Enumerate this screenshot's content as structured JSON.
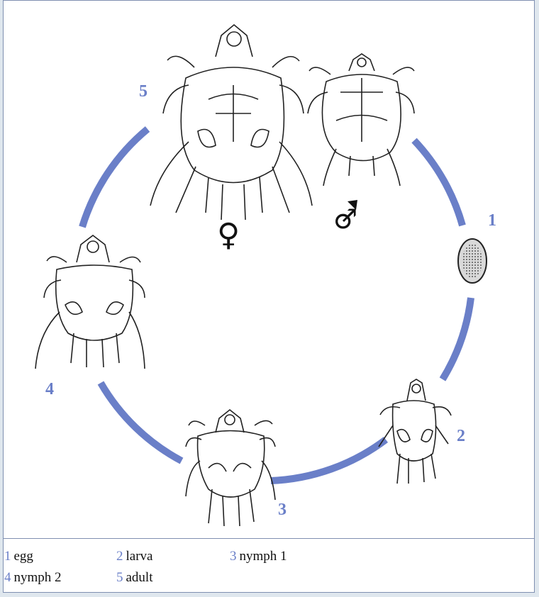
{
  "colors": {
    "accent": "#6a7fc8",
    "line": "#222222",
    "frame": "#7f8fb0"
  },
  "stage_labels": [
    "1",
    "2",
    "3",
    "4",
    "5"
  ],
  "symbols": {
    "female": "♀",
    "male": "♂"
  },
  "legend": [
    {
      "num": "1",
      "text": "egg"
    },
    {
      "num": "2",
      "text": "larva"
    },
    {
      "num": "3",
      "text": "nymph 1"
    },
    {
      "num": "4",
      "text": "nymph 2"
    },
    {
      "num": "5",
      "text": "adult"
    }
  ]
}
